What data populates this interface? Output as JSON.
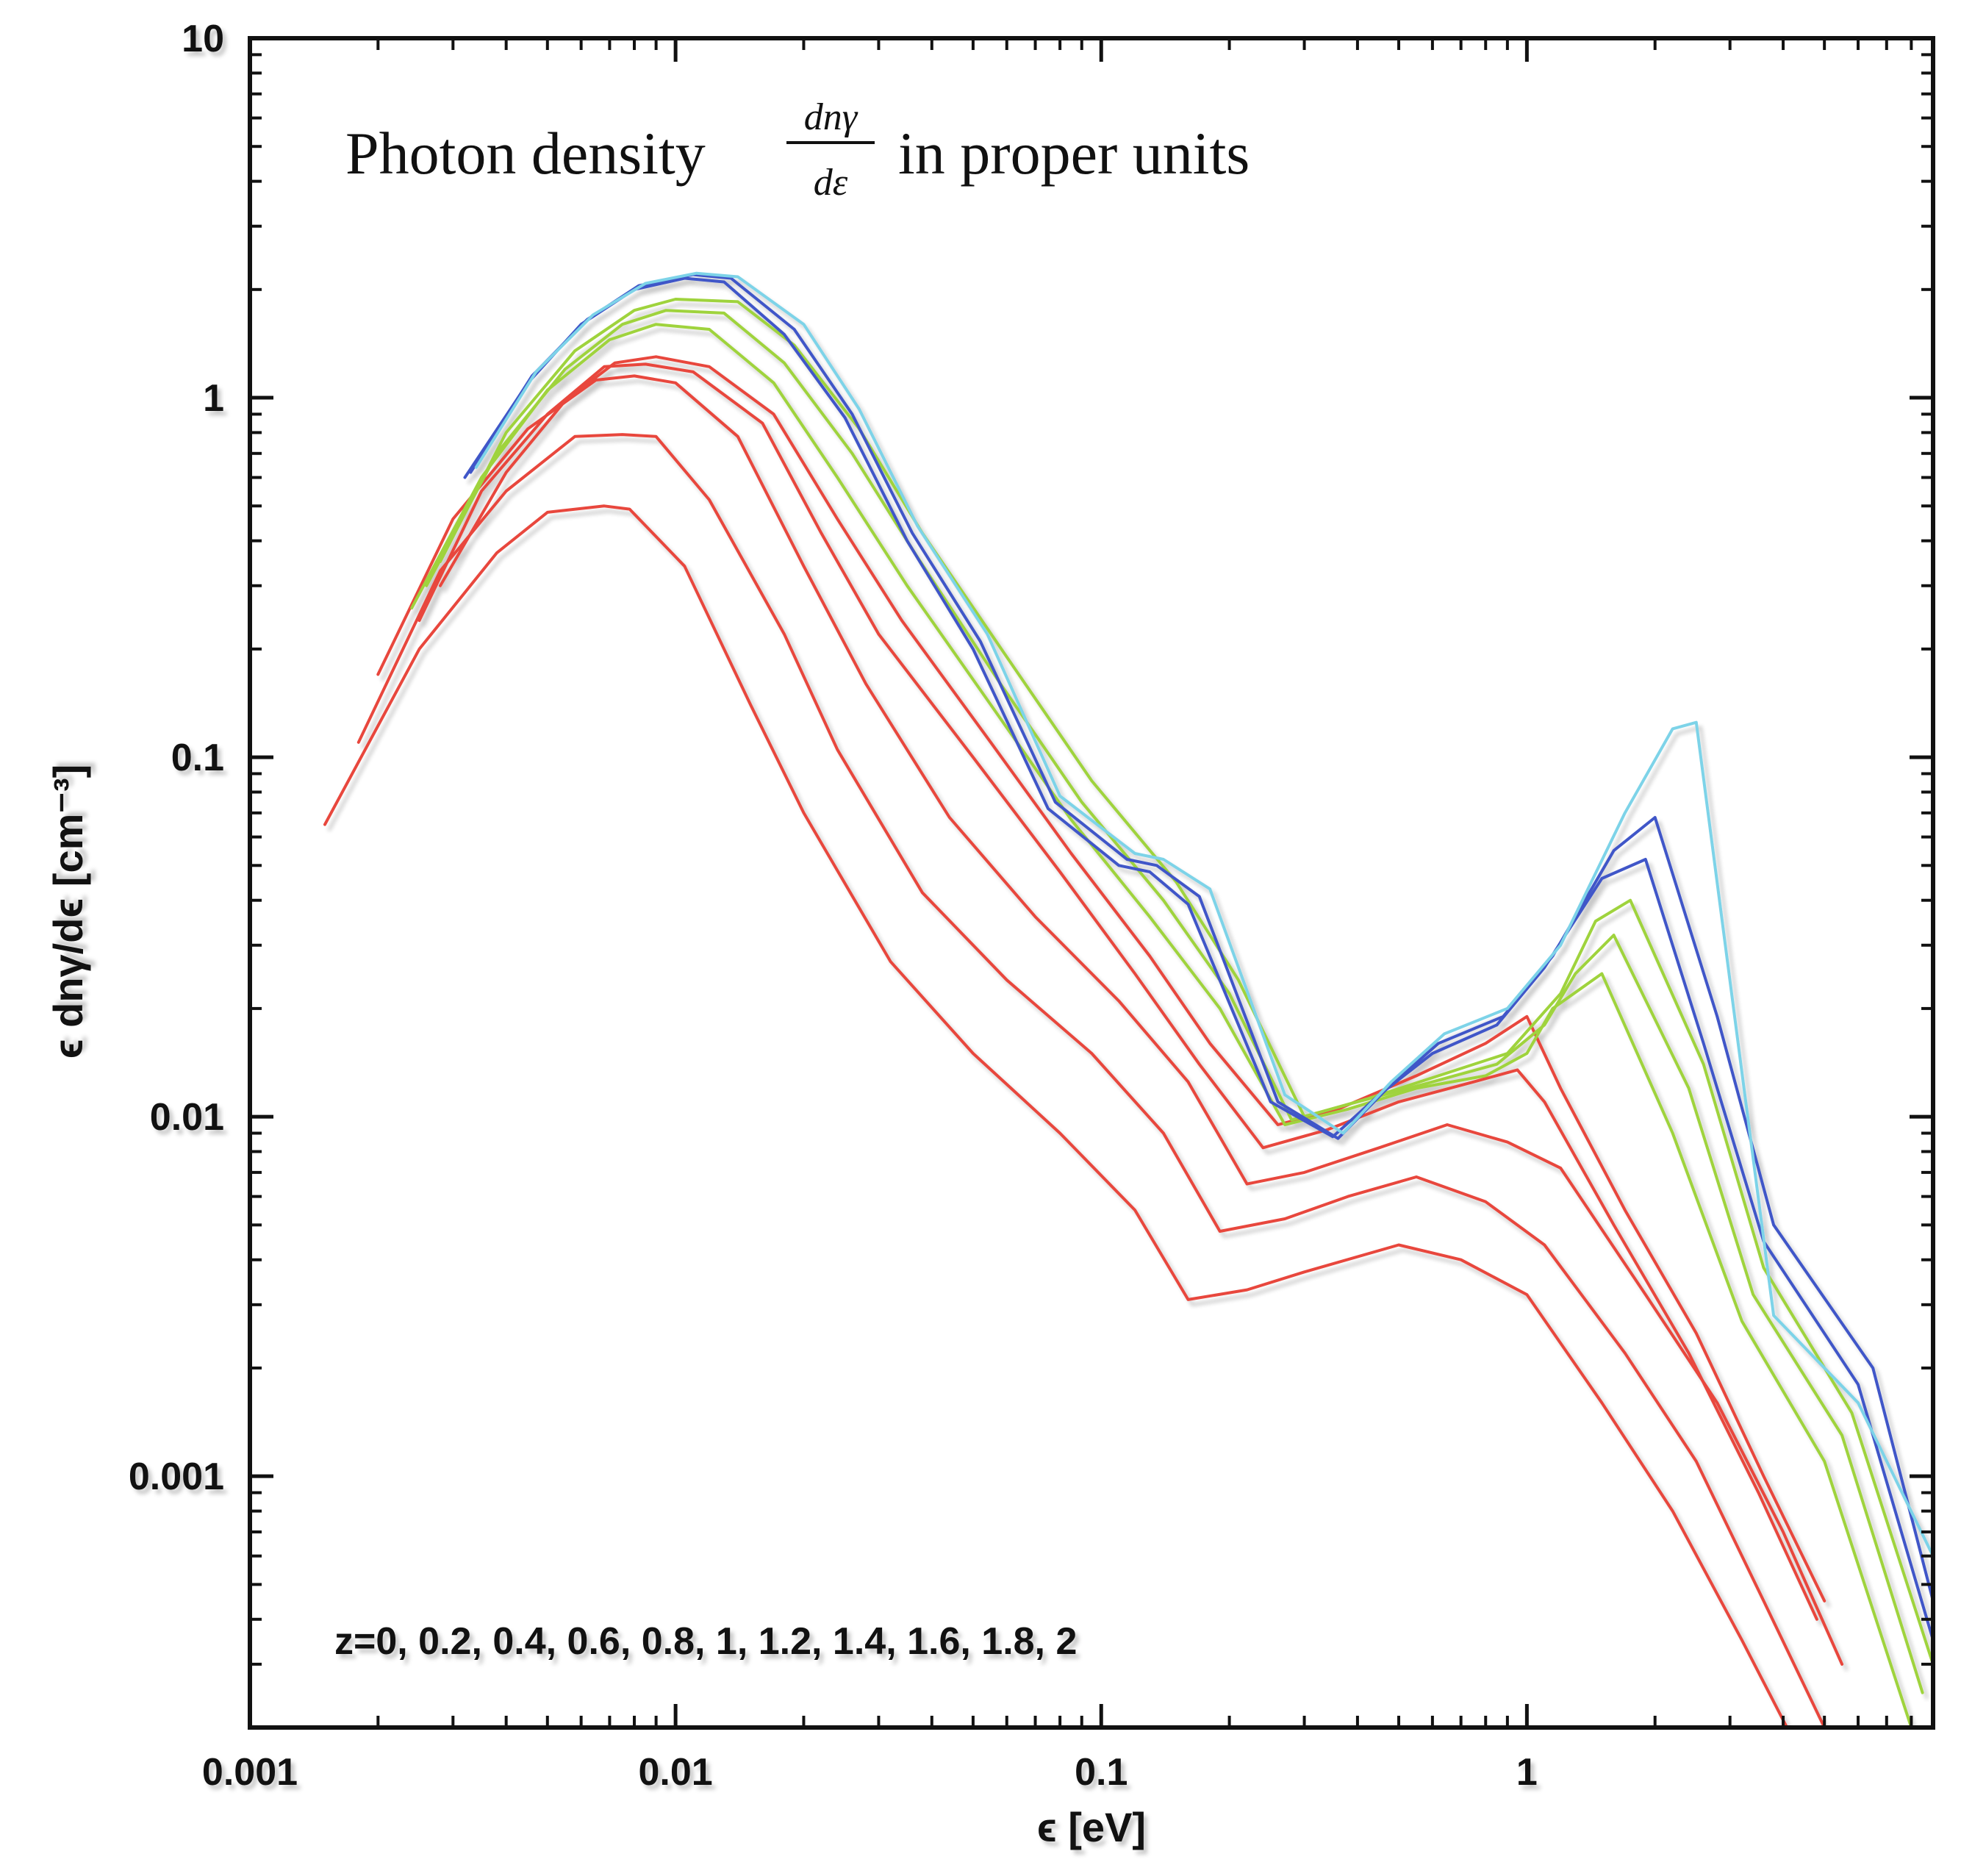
{
  "chart_data": {
    "type": "line",
    "title": "Photon density",
    "title_fraction_numerator": "dnγ",
    "title_fraction_denominator": "dε",
    "title_suffix": "in proper units",
    "xlabel": "ϵ [eV]",
    "ylabel": "ϵ dnγ/dϵ [cm⁻³]",
    "xscale": "log",
    "yscale": "log",
    "xlim": [
      0.001,
      9
    ],
    "ylim": [
      0.0002,
      10
    ],
    "x_ticks": [
      {
        "value": 0.001,
        "label": "0.001"
      },
      {
        "value": 0.01,
        "label": "0.01"
      },
      {
        "value": 0.1,
        "label": "0.1"
      },
      {
        "value": 1,
        "label": "1"
      }
    ],
    "y_ticks": [
      {
        "value": 10,
        "label": "10"
      },
      {
        "value": 1,
        "label": "1"
      },
      {
        "value": 0.1,
        "label": "0.1"
      },
      {
        "value": 0.01,
        "label": "0.01"
      },
      {
        "value": 0.001,
        "label": "0.001"
      }
    ],
    "annotation": "z=0, 0.2, 0.4, 0.6, 0.8, 1, 1.2, 1.4, 1.6, 1.8, 2",
    "series": [
      {
        "name": "z=0",
        "color": "#e8463c",
        "x": [
          0.0015,
          0.0025,
          0.0038,
          0.005,
          0.0068,
          0.0078,
          0.0105,
          0.015,
          0.02,
          0.032,
          0.05,
          0.08,
          0.12,
          0.16,
          0.22,
          0.3,
          0.5,
          0.7,
          1.0,
          1.5,
          2.2,
          3.2,
          4.5
        ],
        "y": [
          0.065,
          0.2,
          0.37,
          0.48,
          0.5,
          0.49,
          0.34,
          0.14,
          0.07,
          0.027,
          0.015,
          0.009,
          0.0055,
          0.0031,
          0.0033,
          0.0037,
          0.0044,
          0.004,
          0.0032,
          0.0016,
          0.0008,
          0.00035,
          0.00016
        ]
      },
      {
        "name": "z=0.2",
        "color": "#e8463c",
        "x": [
          0.0018,
          0.0028,
          0.004,
          0.0058,
          0.0075,
          0.009,
          0.012,
          0.018,
          0.024,
          0.038,
          0.06,
          0.095,
          0.14,
          0.19,
          0.27,
          0.38,
          0.55,
          0.8,
          1.1,
          1.7,
          2.5,
          3.6,
          5.0
        ],
        "y": [
          0.11,
          0.33,
          0.55,
          0.78,
          0.79,
          0.78,
          0.52,
          0.22,
          0.105,
          0.042,
          0.024,
          0.015,
          0.009,
          0.0048,
          0.0052,
          0.006,
          0.0068,
          0.0058,
          0.0044,
          0.0022,
          0.0011,
          0.00045,
          0.0002
        ]
      },
      {
        "name": "z=0.4",
        "color": "#e8463c",
        "x": [
          0.002,
          0.003,
          0.0045,
          0.0065,
          0.008,
          0.01,
          0.014,
          0.02,
          0.028,
          0.044,
          0.07,
          0.11,
          0.16,
          0.22,
          0.3,
          0.45,
          0.65,
          0.9,
          1.2,
          1.9,
          2.8,
          4.0,
          5.5
        ],
        "y": [
          0.17,
          0.46,
          0.82,
          1.12,
          1.15,
          1.1,
          0.78,
          0.34,
          0.16,
          0.068,
          0.036,
          0.021,
          0.0125,
          0.0065,
          0.007,
          0.0082,
          0.0095,
          0.0085,
          0.0072,
          0.0032,
          0.0016,
          0.0007,
          0.0003
        ]
      },
      {
        "name": "z=0.6",
        "color": "#e8463c",
        "x": [
          0.0025,
          0.0035,
          0.005,
          0.0068,
          0.0085,
          0.011,
          0.016,
          0.022,
          0.03,
          0.05,
          0.08,
          0.12,
          0.17,
          0.24,
          0.34,
          0.5,
          0.75,
          0.95,
          1.1,
          1.6,
          2.4,
          3.5,
          4.8
        ],
        "y": [
          0.24,
          0.55,
          0.9,
          1.22,
          1.24,
          1.18,
          0.85,
          0.42,
          0.22,
          0.1,
          0.048,
          0.025,
          0.014,
          0.0082,
          0.0092,
          0.011,
          0.0125,
          0.0135,
          0.011,
          0.005,
          0.0022,
          0.0009,
          0.0004
        ]
      },
      {
        "name": "z=0.8",
        "color": "#e8463c",
        "x": [
          0.0028,
          0.004,
          0.0055,
          0.0072,
          0.009,
          0.012,
          0.017,
          0.024,
          0.034,
          0.055,
          0.085,
          0.13,
          0.18,
          0.26,
          0.36,
          0.55,
          0.8,
          1.0,
          1.2,
          1.7,
          2.5,
          3.6,
          5.0
        ],
        "y": [
          0.3,
          0.62,
          0.98,
          1.25,
          1.3,
          1.22,
          0.9,
          0.46,
          0.24,
          0.11,
          0.054,
          0.028,
          0.016,
          0.0095,
          0.0105,
          0.013,
          0.016,
          0.019,
          0.012,
          0.0055,
          0.0025,
          0.001,
          0.00045
        ]
      },
      {
        "name": "z=1",
        "color": "#9fd33d",
        "x": [
          0.0024,
          0.0035,
          0.005,
          0.007,
          0.009,
          0.012,
          0.017,
          0.024,
          0.035,
          0.055,
          0.085,
          0.13,
          0.19,
          0.27,
          0.38,
          0.55,
          0.8,
          1.0,
          1.15,
          1.5,
          2.2,
          3.2,
          5.0,
          8.0
        ],
        "y": [
          0.26,
          0.6,
          1.05,
          1.45,
          1.6,
          1.55,
          1.1,
          0.6,
          0.3,
          0.14,
          0.067,
          0.036,
          0.02,
          0.0095,
          0.0105,
          0.012,
          0.013,
          0.015,
          0.02,
          0.025,
          0.009,
          0.0027,
          0.0011,
          0.0002
        ]
      },
      {
        "name": "z=1.2",
        "color": "#9fd33d",
        "x": [
          0.0026,
          0.0038,
          0.0055,
          0.0075,
          0.0095,
          0.013,
          0.018,
          0.026,
          0.037,
          0.058,
          0.09,
          0.14,
          0.2,
          0.28,
          0.4,
          0.6,
          0.85,
          1.1,
          1.3,
          1.6,
          2.4,
          3.4,
          5.5,
          8.5
        ],
        "y": [
          0.3,
          0.7,
          1.2,
          1.6,
          1.75,
          1.72,
          1.25,
          0.7,
          0.36,
          0.16,
          0.075,
          0.04,
          0.022,
          0.0098,
          0.011,
          0.0125,
          0.014,
          0.018,
          0.025,
          0.032,
          0.012,
          0.0032,
          0.0013,
          0.00025
        ]
      },
      {
        "name": "z=1.4",
        "color": "#9fd33d",
        "x": [
          0.0028,
          0.004,
          0.0058,
          0.008,
          0.01,
          0.014,
          0.019,
          0.027,
          0.038,
          0.06,
          0.095,
          0.15,
          0.21,
          0.3,
          0.42,
          0.62,
          0.9,
          1.2,
          1.45,
          1.75,
          2.6,
          3.6,
          5.8,
          9.0
        ],
        "y": [
          0.35,
          0.8,
          1.35,
          1.75,
          1.88,
          1.85,
          1.4,
          0.82,
          0.42,
          0.19,
          0.086,
          0.045,
          0.024,
          0.01,
          0.0112,
          0.013,
          0.015,
          0.022,
          0.035,
          0.04,
          0.014,
          0.0038,
          0.0015,
          0.0003
        ]
      },
      {
        "name": "z=1.6",
        "color": "#3f57c8",
        "x": [
          0.0032,
          0.0045,
          0.006,
          0.008,
          0.0105,
          0.013,
          0.018,
          0.025,
          0.035,
          0.05,
          0.075,
          0.11,
          0.13,
          0.16,
          0.25,
          0.35,
          0.45,
          0.6,
          0.85,
          1.1,
          1.5,
          1.9,
          2.6,
          3.6,
          6.0,
          9.0
        ],
        "y": [
          0.6,
          1.1,
          1.6,
          2.0,
          2.15,
          2.1,
          1.5,
          0.88,
          0.4,
          0.2,
          0.072,
          0.05,
          0.048,
          0.039,
          0.011,
          0.0088,
          0.0115,
          0.015,
          0.018,
          0.026,
          0.046,
          0.052,
          0.016,
          0.0045,
          0.0018,
          0.00035
        ]
      },
      {
        "name": "z=1.8",
        "color": "#3f57c8",
        "x": [
          0.0033,
          0.0046,
          0.0062,
          0.0082,
          0.011,
          0.0135,
          0.019,
          0.026,
          0.036,
          0.052,
          0.078,
          0.115,
          0.135,
          0.17,
          0.26,
          0.36,
          0.47,
          0.62,
          0.88,
          1.15,
          1.6,
          2.0,
          2.8,
          3.8,
          6.5,
          9.0
        ],
        "y": [
          0.62,
          1.15,
          1.65,
          2.05,
          2.2,
          2.15,
          1.55,
          0.9,
          0.42,
          0.21,
          0.075,
          0.052,
          0.05,
          0.041,
          0.011,
          0.0087,
          0.012,
          0.016,
          0.019,
          0.028,
          0.055,
          0.068,
          0.019,
          0.005,
          0.002,
          0.00045
        ]
      },
      {
        "name": "z=2",
        "color": "#7dd3e8",
        "x": [
          0.0034,
          0.0047,
          0.0064,
          0.0085,
          0.0112,
          0.014,
          0.02,
          0.027,
          0.037,
          0.054,
          0.08,
          0.12,
          0.14,
          0.18,
          0.27,
          0.37,
          0.48,
          0.64,
          0.9,
          1.2,
          1.7,
          2.2,
          2.5,
          3.8,
          6.0,
          9.0
        ],
        "y": [
          0.64,
          1.18,
          1.7,
          2.08,
          2.22,
          2.17,
          1.6,
          0.93,
          0.44,
          0.22,
          0.078,
          0.054,
          0.052,
          0.043,
          0.0115,
          0.009,
          0.0125,
          0.017,
          0.02,
          0.03,
          0.07,
          0.12,
          0.125,
          0.0028,
          0.0016,
          0.0006
        ]
      }
    ]
  }
}
